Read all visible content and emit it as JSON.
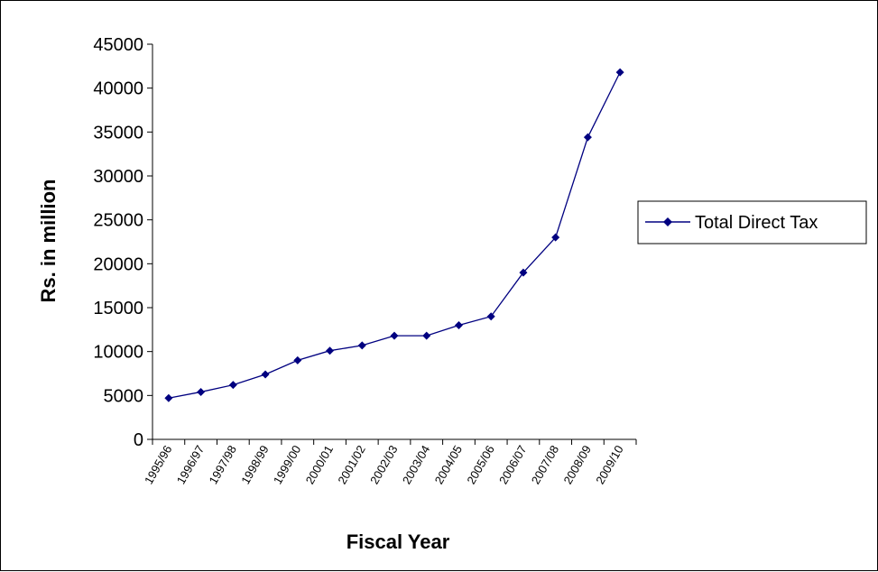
{
  "chart_data": {
    "type": "line",
    "title": "",
    "xlabel": "Fiscal Year",
    "ylabel": "Rs. in million",
    "ylim": [
      0,
      45000
    ],
    "yticks": [
      0,
      5000,
      10000,
      15000,
      20000,
      25000,
      30000,
      35000,
      40000,
      45000
    ],
    "categories": [
      "1995/96",
      "1996/97",
      "1997/98",
      "1998/99",
      "1999/00",
      "2000/01",
      "2001/02",
      "2002/03",
      "2003/04",
      "2004/05",
      "2005/06",
      "2006/07",
      "2007/08",
      "2008/09",
      "2009/10"
    ],
    "series": [
      {
        "name": "Total Direct Tax",
        "values": [
          4700,
          5400,
          6200,
          7400,
          9000,
          10100,
          10700,
          11800,
          11800,
          13000,
          14000,
          19000,
          23000,
          34400,
          41800
        ],
        "color": "#000080",
        "marker": "diamond"
      }
    ],
    "grid": false,
    "legend_position": "right"
  }
}
